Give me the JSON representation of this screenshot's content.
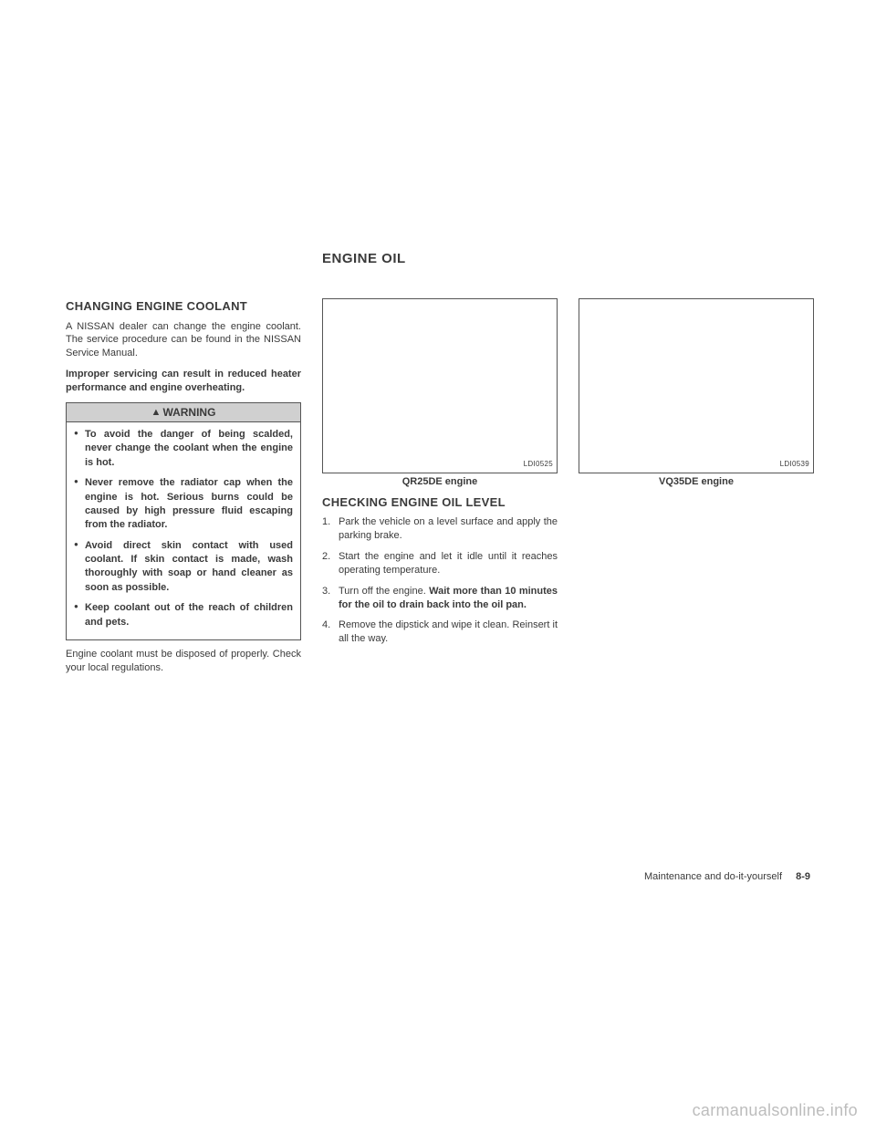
{
  "main_section_title": "ENGINE OIL",
  "col1": {
    "heading": "CHANGING ENGINE COOLANT",
    "intro": "A NISSAN dealer can change the engine coolant. The service procedure can be found in the NISSAN Service Manual.",
    "caution": "Improper servicing can result in reduced heater performance and engine overheating.",
    "warning_label": "WARNING",
    "warnings": [
      "To avoid the danger of being scalded, never change the coolant when the engine is hot.",
      "Never remove the radiator cap when the engine is hot. Serious burns could be caused by high pressure fluid escaping from the radiator.",
      "Avoid direct skin contact with used coolant. If skin contact is made, wash thoroughly with soap or hand cleaner as soon as possible.",
      "Keep coolant out of the reach of children and pets."
    ],
    "after_warning": "Engine coolant must be disposed of properly. Check your local regulations."
  },
  "col2": {
    "fig_code": "LDI0525",
    "fig_caption": "QR25DE engine",
    "heading": "CHECKING ENGINE OIL LEVEL",
    "steps": [
      "Park the vehicle on a level surface and apply the parking brake.",
      "Start the engine and let it idle until it reaches operating temperature.",
      "Turn off the engine. Wait more than 10 minutes for the oil to drain back into the oil pan.",
      "Remove the dipstick and wipe it clean. Reinsert it all the way."
    ],
    "step3_bold": "Wait more than 10 minutes for the oil to drain back into the oil pan."
  },
  "col3": {
    "fig_code": "LDI0539",
    "fig_caption": "VQ35DE engine"
  },
  "footer_text": "Maintenance and do-it-yourself",
  "footer_page": "8-9",
  "watermark": "carmanualsonline.info"
}
